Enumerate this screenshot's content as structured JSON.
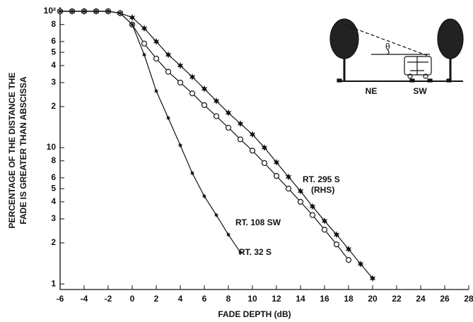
{
  "chart_data": {
    "type": "line",
    "x_label": "FADE DEPTH (dB)",
    "y_label": [
      "PERCENTAGE OF THE DISTANCE THE",
      "FADE IS GREATER THAN ABSCISSA"
    ],
    "log_y": true,
    "xlim": [
      -6,
      28
    ],
    "ylim": [
      0.91,
      100
    ],
    "xticks": [
      -6,
      -4,
      -2,
      0,
      2,
      4,
      6,
      8,
      10,
      12,
      14,
      16,
      18,
      20,
      22,
      24,
      26,
      28
    ],
    "yticks": [
      1,
      2,
      3,
      4,
      5,
      6,
      8,
      10,
      {
        "value": 20,
        "label": "2"
      },
      {
        "value": 30,
        "label": "3"
      },
      {
        "value": 40,
        "label": "4"
      },
      {
        "value": 50,
        "label": "5"
      },
      {
        "value": 60,
        "label": "6"
      },
      {
        "value": 80,
        "label": "8"
      },
      {
        "value": 100,
        "label": "10²"
      }
    ],
    "series": [
      {
        "name": "RT. 295 S",
        "marker": "star",
        "color": "#111",
        "x": [
          -6,
          -5,
          -4,
          -3,
          -2,
          -1,
          0,
          1,
          2,
          3,
          4,
          5,
          6,
          7,
          8,
          9,
          10,
          11,
          12,
          13,
          14,
          15,
          16,
          17,
          18,
          19,
          20
        ],
        "values": [
          100,
          100,
          100,
          100,
          100,
          97,
          90,
          75,
          60,
          48,
          40,
          33,
          27,
          22,
          18,
          15,
          12.5,
          10,
          7.8,
          6.1,
          4.8,
          3.7,
          2.9,
          2.3,
          1.8,
          1.4,
          1.1
        ]
      },
      {
        "name": "RT. 108 SW",
        "marker": "circle",
        "color": "#111",
        "x": [
          -6,
          -5,
          -4,
          -3,
          -2,
          -1,
          0,
          1,
          2,
          3,
          4,
          5,
          6,
          7,
          8,
          9,
          10,
          11,
          12,
          13,
          14,
          15,
          16,
          17,
          18
        ],
        "values": [
          100,
          100,
          100,
          100,
          100,
          97,
          80,
          58,
          45,
          36,
          30,
          25,
          20.5,
          17,
          14,
          11.5,
          9.5,
          7.7,
          6.2,
          5,
          4,
          3.2,
          2.5,
          1.95,
          1.5
        ]
      },
      {
        "name": "RT. 32 S",
        "marker": "small-star",
        "color": "#111",
        "x": [
          -6,
          -5,
          -4,
          -3,
          -2,
          -1,
          0,
          1,
          2,
          3,
          4,
          5,
          6,
          7,
          8,
          9
        ],
        "values": [
          100,
          100,
          100,
          100,
          100,
          97,
          80,
          48,
          26,
          16.5,
          10.4,
          6.5,
          4.4,
          3.2,
          2.3,
          1.7
        ]
      }
    ],
    "annotations": [
      "(RHS)"
    ],
    "inset": {
      "angle": "θ",
      "left": "NE",
      "right": "SW"
    }
  }
}
